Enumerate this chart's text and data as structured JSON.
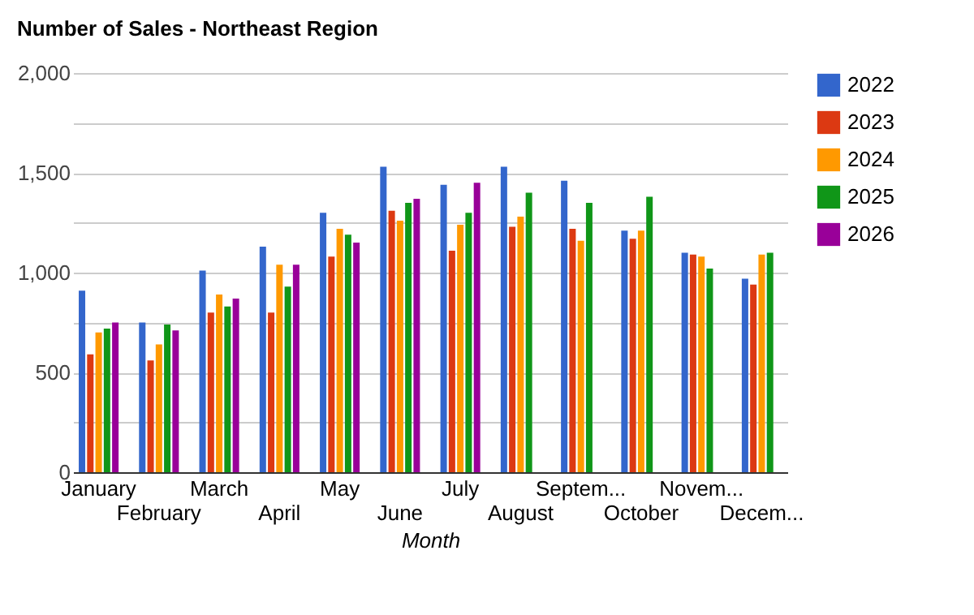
{
  "chart_data": {
    "type": "bar",
    "title": "Number of Sales - Northeast Region",
    "xlabel": "Month",
    "categories": [
      "January",
      "February",
      "March",
      "April",
      "May",
      "June",
      "July",
      "August",
      "Septem...",
      "October",
      "Novem...",
      "Decem..."
    ],
    "series": [
      {
        "name": "2022",
        "color": "#3366cc",
        "values": [
          910,
          750,
          1010,
          1130,
          1300,
          1530,
          1440,
          1530,
          1460,
          1210,
          1100,
          970
        ]
      },
      {
        "name": "2023",
        "color": "#dc3912",
        "values": [
          590,
          560,
          800,
          800,
          1080,
          1310,
          1110,
          1230,
          1220,
          1170,
          1090,
          940
        ]
      },
      {
        "name": "2024",
        "color": "#ff9900",
        "values": [
          700,
          640,
          890,
          1040,
          1220,
          1260,
          1240,
          1280,
          1160,
          1210,
          1080,
          1090
        ]
      },
      {
        "name": "2025",
        "color": "#109618",
        "values": [
          720,
          740,
          830,
          930,
          1190,
          1350,
          1300,
          1400,
          1350,
          1380,
          1020,
          1100
        ]
      },
      {
        "name": "2026",
        "color": "#990099",
        "values": [
          750,
          710,
          870,
          1040,
          1150,
          1370,
          1450,
          null,
          null,
          null,
          null,
          null
        ]
      }
    ],
    "ylim": [
      0,
      2000
    ],
    "yticks": [
      0,
      {
        "value": 250,
        "label": null
      },
      500,
      {
        "value": 750,
        "label": null
      },
      {
        "value": 1000,
        "label": "1,000"
      },
      {
        "value": 1250,
        "label": null
      },
      {
        "value": 1500,
        "label": "1,500"
      },
      {
        "value": 1750,
        "label": null
      },
      {
        "value": 2000,
        "label": "2,000"
      }
    ],
    "grid": "y",
    "legend": "top right"
  }
}
